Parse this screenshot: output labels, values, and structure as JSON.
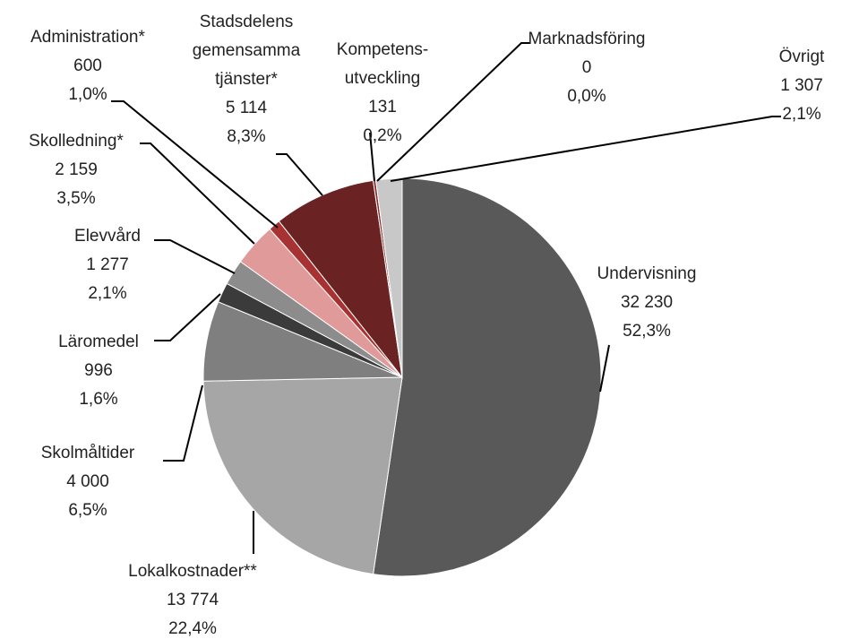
{
  "chart_data": {
    "type": "pie",
    "categories": [
      "Undervisning",
      "Lokalkostnader**",
      "Skolmåltider",
      "Läromedel",
      "Elevvård",
      "Skolledning*",
      "Administration*",
      "Stadsdelens\ngemensamma\ntjänster*",
      "Kompetens-\nutveckling",
      "Marknadsföring",
      "Övrigt"
    ],
    "values": [
      32230,
      13774,
      4000,
      996,
      1277,
      2159,
      600,
      5114,
      131,
      0,
      1307
    ],
    "value_labels": [
      "32 230",
      "13 774",
      "4 000",
      "996",
      "1 277",
      "2 159",
      "600",
      "5 114",
      "131",
      "0",
      "1 307"
    ],
    "percent_values": [
      52.3,
      22.4,
      6.5,
      1.6,
      2.1,
      3.5,
      1.0,
      8.3,
      0.2,
      0.0,
      2.1
    ],
    "percent_labels": [
      "52,3%",
      "22,4%",
      "6,5%",
      "1,6%",
      "2,1%",
      "3,5%",
      "1,0%",
      "8,3%",
      "0,2%",
      "0,0%",
      "2,1%"
    ],
    "colors": [
      "#595959",
      "#a6a6a6",
      "#7f7f7f",
      "#3b3b3b",
      "#8c8c8c",
      "#e09a9a",
      "#a83232",
      "#6b2222",
      "#8b2a2a",
      "#c0c0c0",
      "#c8c8c8"
    ]
  }
}
